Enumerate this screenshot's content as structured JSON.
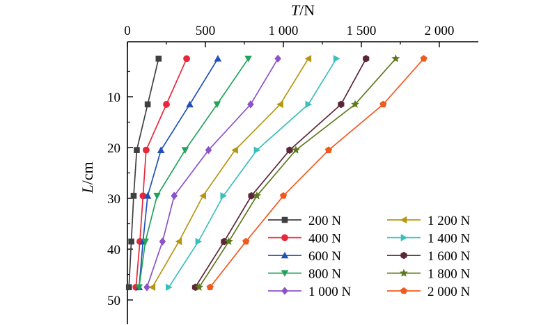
{
  "chart_data": {
    "type": "line",
    "title": "",
    "xlabel": "T/N",
    "xlabel_italic": "T",
    "xlabel_unit": "/N",
    "ylabel": "L/cm",
    "ylabel_italic": "L",
    "ylabel_unit": "/cm",
    "xlim": [
      0,
      2250
    ],
    "ylim": [
      0,
      55
    ],
    "x_axis_position": "top",
    "y_axis_inverted": true,
    "grid": false,
    "legend_position": "bottom-right",
    "x_ticks": [
      {
        "value": 0,
        "label": "0"
      },
      {
        "value": 500,
        "label": "500"
      },
      {
        "value": 1000,
        "label": "1 000"
      },
      {
        "value": 1500,
        "label": "1 500"
      },
      {
        "value": 2000,
        "label": "2 000"
      }
    ],
    "y_ticks": [
      {
        "value": 10,
        "label": "10"
      },
      {
        "value": 20,
        "label": "20"
      },
      {
        "value": 30,
        "label": "30"
      },
      {
        "value": 40,
        "label": "40"
      },
      {
        "value": 50,
        "label": "50"
      }
    ],
    "y": [
      2.5,
      11.5,
      20.5,
      29.5,
      38.5,
      47.5
    ],
    "series": [
      {
        "name": "200 N",
        "color": "#3f3f3f",
        "marker": "square",
        "x": [
          200,
          130,
          60,
          40,
          25,
          10
        ]
      },
      {
        "name": "400 N",
        "color": "#e8273b",
        "marker": "circle",
        "x": [
          380,
          250,
          120,
          100,
          80,
          55
        ]
      },
      {
        "name": "600 N",
        "color": "#2050b8",
        "marker": "triangle-up",
        "x": [
          580,
          400,
          215,
          130,
          100,
          75
        ]
      },
      {
        "name": "800 N",
        "color": "#22a35a",
        "marker": "triangle-down",
        "x": [
          775,
          575,
          370,
          190,
          115,
          75
        ]
      },
      {
        "name": "1 000 N",
        "color": "#8c52c8",
        "marker": "diamond",
        "x": [
          965,
          790,
          520,
          300,
          225,
          125
        ]
      },
      {
        "name": "1 200 N",
        "color": "#b49612",
        "marker": "triangle-left",
        "x": [
          1160,
          980,
          690,
          485,
          330,
          160
        ]
      },
      {
        "name": "1 400 N",
        "color": "#3cbfbb",
        "marker": "triangle-right",
        "x": [
          1340,
          1160,
          830,
          615,
          455,
          265
        ]
      },
      {
        "name": "1 600 N",
        "color": "#5b2636",
        "marker": "hexagon",
        "x": [
          1530,
          1370,
          1040,
          795,
          620,
          435
        ]
      },
      {
        "name": "1 800 N",
        "color": "#5d7a1c",
        "marker": "star",
        "x": [
          1720,
          1460,
          1080,
          830,
          650,
          460
        ]
      },
      {
        "name": "2 000 N",
        "color": "#f05a1e",
        "marker": "pentagon",
        "x": [
          1900,
          1640,
          1290,
          1000,
          760,
          530
        ]
      }
    ]
  }
}
